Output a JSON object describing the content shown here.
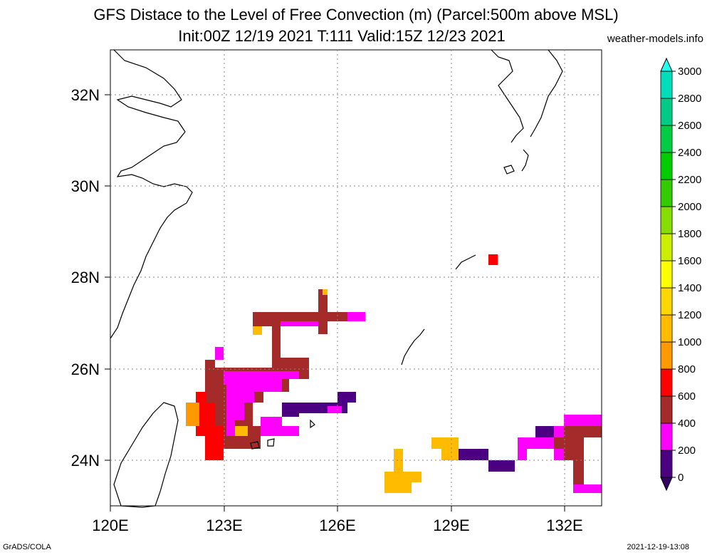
{
  "title_line1": "GFS Distace to the Level of Free Convection (m) (Parcel:500m above MSL)",
  "title_line2": "Init:00Z 12/19 2021 T:111 Valid:15Z 12/23 2021",
  "source": "weather-models.info",
  "footer_left": "GrADS/COLA",
  "footer_right": "2021-12-19-13:08",
  "x_ticks": [
    "120E",
    "123E",
    "126E",
    "129E",
    "132E"
  ],
  "y_ticks": [
    "32N",
    "30N",
    "28N",
    "26N",
    "24N"
  ],
  "colorbar": {
    "labels": [
      "0",
      "200",
      "400",
      "600",
      "800",
      "1000",
      "1200",
      "1400",
      "1600",
      "1800",
      "2000",
      "2200",
      "2400",
      "2600",
      "2800",
      "3000"
    ],
    "colors": [
      "#4b0082",
      "#ff00ff",
      "#a52a2a",
      "#ff0000",
      "#ff9900",
      "#ffbb00",
      "#ffd700",
      "#ffff00",
      "#ccee00",
      "#88dd00",
      "#33cc00",
      "#00cc00",
      "#00cc44",
      "#00cc88",
      "#00ddbb",
      "#00ffee"
    ],
    "under_color": "#330066",
    "over_color": "#22ffee"
  },
  "map_extent": {
    "lon": [
      120,
      133
    ],
    "lat": [
      23,
      33
    ]
  },
  "contours": [
    {
      "color": "#a52a2a",
      "lon": [
        122.6,
        125.0
      ],
      "lat": [
        24.0,
        26.4
      ]
    },
    {
      "color": "#ff00ff",
      "lon": [
        123.0,
        124.9
      ],
      "lat": [
        24.7,
        26.0
      ]
    },
    {
      "color": "#ff0000",
      "lon": [
        122.2,
        123.0
      ],
      "lat": [
        24.0,
        25.4
      ]
    },
    {
      "color": "#ff9900",
      "lon": [
        122.0,
        122.5
      ],
      "lat": [
        24.8,
        25.3
      ]
    },
    {
      "color": "#ff00ff",
      "lon": [
        123.8,
        126.8
      ],
      "lat": [
        26.9,
        27.2
      ]
    },
    {
      "color": "#a52a2a",
      "lon": [
        124.2,
        125.8
      ],
      "lat": [
        26.8,
        27.2
      ]
    },
    {
      "color": "#a52a2a",
      "lon": [
        125.4,
        125.6
      ],
      "lat": [
        26.8,
        27.6
      ]
    },
    {
      "color": "#4b0082",
      "lon": [
        124.6,
        126.5
      ],
      "lat": [
        24.9,
        25.4
      ]
    },
    {
      "color": "#ff0000",
      "lon": [
        130.0,
        130.2
      ],
      "lat": [
        28.3,
        28.5
      ]
    },
    {
      "color": "#ffbb00",
      "lon": [
        127.3,
        128.2
      ],
      "lat": [
        23.3,
        24.2
      ]
    },
    {
      "color": "#ffbb00",
      "lon": [
        128.6,
        129.2
      ],
      "lat": [
        24.0,
        24.5
      ]
    },
    {
      "color": "#4b0082",
      "lon": [
        129.1,
        130.4
      ],
      "lat": [
        23.8,
        24.3
      ]
    },
    {
      "color": "#ff00ff",
      "lon": [
        130.5,
        133.0
      ],
      "lat": [
        24.2,
        25.0
      ]
    },
    {
      "color": "#a52a2a",
      "lon": [
        131.9,
        133.0
      ],
      "lat": [
        23.3,
        24.8
      ]
    }
  ]
}
